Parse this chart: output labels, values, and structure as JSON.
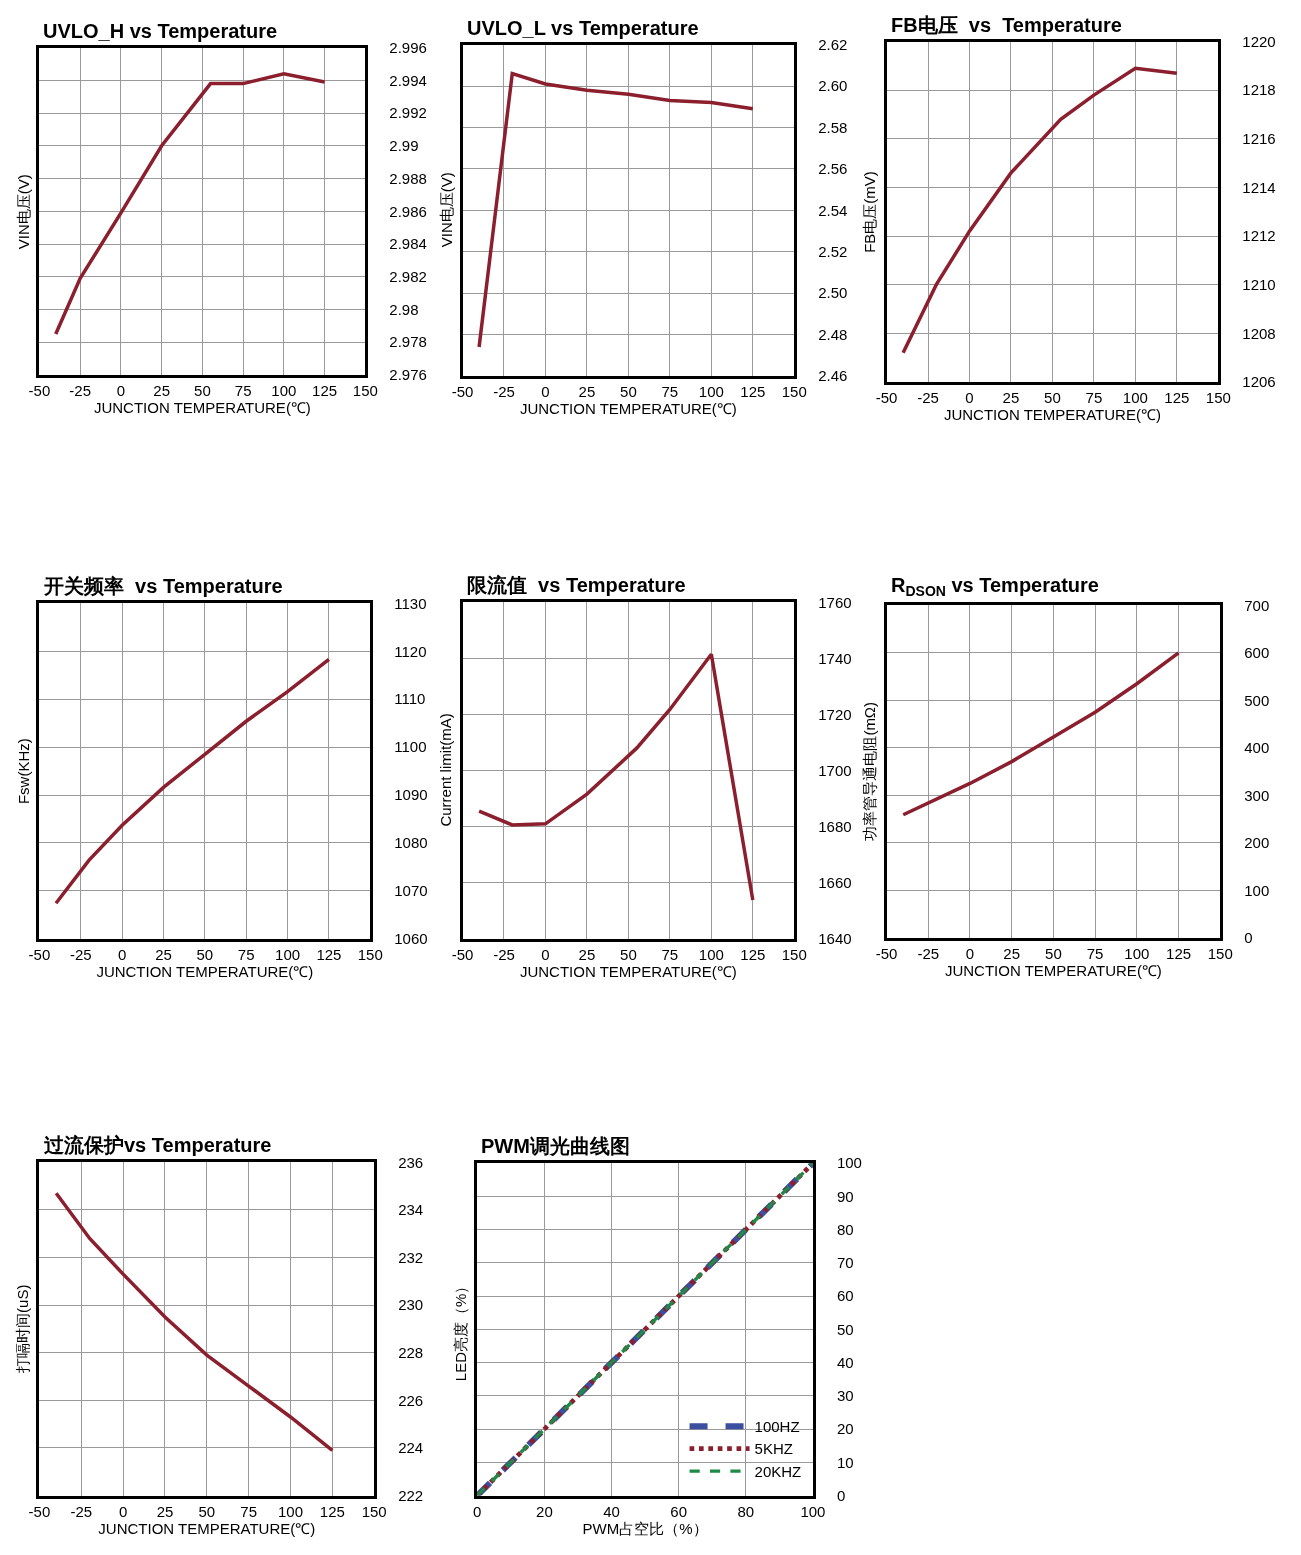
{
  "chart_data": [
    {
      "type": "line",
      "title": "UVLO_H vs Temperature",
      "xlabel": "JUNCTION TEMPERATURE(℃)",
      "ylabel": "VIN电压(V)",
      "x": [
        -40,
        -25,
        0,
        25,
        55,
        75,
        100,
        125
      ],
      "values": [
        2.9785,
        2.9819,
        2.9859,
        2.99,
        2.9938,
        2.9938,
        2.9944,
        2.9939
      ],
      "color": "#8b1f2e",
      "xlim": [
        -50,
        150
      ],
      "xticks": [
        -50,
        -25,
        0,
        25,
        50,
        75,
        100,
        125,
        150
      ],
      "ylim": [
        2.976,
        2.996
      ],
      "yticks": [
        2.976,
        2.978,
        2.98,
        2.982,
        2.984,
        2.986,
        2.988,
        2.99,
        2.992,
        2.994,
        2.996
      ],
      "grid": true
    },
    {
      "type": "line",
      "title": "UVLO_L vs Temperature",
      "xlabel": "JUNCTION TEMPERATURE(℃)",
      "ylabel": "VIN电压(V)",
      "x": [
        -40,
        -20,
        0,
        25,
        50,
        75,
        100,
        125
      ],
      "values": [
        2.474,
        2.606,
        2.601,
        2.598,
        2.596,
        2.593,
        2.592,
        2.589
      ],
      "color": "#8b1f2e",
      "xlim": [
        -50,
        150
      ],
      "xticks": [
        -50,
        -25,
        0,
        25,
        50,
        75,
        100,
        125,
        150
      ],
      "ylim": [
        2.46,
        2.62
      ],
      "yticks": [
        2.46,
        2.48,
        {
          "value": 2.5,
          "label": "2.50"
        },
        2.52,
        2.54,
        2.56,
        2.58,
        {
          "value": 2.6,
          "label": "2.60"
        },
        2.62
      ],
      "grid": true
    },
    {
      "type": "line",
      "title": "FB电压  vs  Temperature",
      "xlabel": "JUNCTION TEMPERATURE(℃)",
      "ylabel": "FB电压(mV)",
      "x": [
        -40,
        -20,
        0,
        25,
        55,
        75,
        100,
        125
      ],
      "values": [
        1207.2,
        1210.0,
        1212.2,
        1214.6,
        1216.8,
        1217.8,
        1218.9,
        1218.7
      ],
      "color": "#8b1f2e",
      "xlim": [
        -50,
        150
      ],
      "xticks": [
        -50,
        -25,
        0,
        25,
        50,
        75,
        100,
        125,
        150
      ],
      "ylim": [
        1206,
        1220
      ],
      "yticks": [
        1206,
        1208,
        1210,
        1212,
        1214,
        1216,
        1218,
        1220
      ],
      "grid": true
    },
    {
      "type": "line",
      "title": "开关频率  vs Temperature",
      "xlabel": "JUNCTION TEMPERATURE(℃)",
      "ylabel": "Fsw(KHz)",
      "x": [
        -40,
        -20,
        0,
        25,
        50,
        75,
        100,
        125
      ],
      "values": [
        1067.4,
        1076.4,
        1083.7,
        1091.6,
        1098.5,
        1105.4,
        1111.6,
        1118.3
      ],
      "color": "#8b1f2e",
      "xlim": [
        -50,
        150
      ],
      "xticks": [
        -50,
        -25,
        0,
        25,
        50,
        75,
        100,
        125,
        150
      ],
      "ylim": [
        1060,
        1130
      ],
      "yticks": [
        1060,
        1070,
        1080,
        1090,
        1100,
        1110,
        1120,
        1130
      ],
      "grid": true
    },
    {
      "type": "line",
      "title": "限流值  vs Temperature",
      "xlabel": "JUNCTION TEMPERATURE(℃)",
      "ylabel": "Current limit(mA)",
      "x": [
        -40,
        -20,
        0,
        25,
        55,
        75,
        100,
        125
      ],
      "values": [
        1685.5,
        1680.6,
        1681.0,
        1691.6,
        1708,
        1721.8,
        1741.5,
        1653.8
      ],
      "color": "#8b1f2e",
      "xlim": [
        -50,
        150
      ],
      "xticks": [
        -50,
        -25,
        0,
        25,
        50,
        75,
        100,
        125,
        150
      ],
      "ylim": [
        1640,
        1760
      ],
      "yticks": [
        1640,
        1660,
        1680,
        1700,
        1720,
        1740,
        1760
      ],
      "grid": true
    },
    {
      "type": "line",
      "title": "R$_{DSON}$ vs Temperature",
      "xlabel": "JUNCTION TEMPERATURE(℃)",
      "ylabel": "功率管导通电阻(mΩ)",
      "x": [
        -40,
        0,
        25,
        50,
        75,
        100,
        125
      ],
      "values": [
        259,
        325,
        371,
        423,
        475,
        535,
        600
      ],
      "color": "#8b1f2e",
      "xlim": [
        -50,
        150
      ],
      "xticks": [
        -50,
        -25,
        0,
        25,
        50,
        75,
        100,
        125,
        150
      ],
      "ylim": [
        0,
        700
      ],
      "yticks": [
        0,
        100,
        200,
        300,
        400,
        500,
        600,
        700
      ],
      "grid": true
    },
    {
      "type": "line",
      "title": "过流保护vs Temperature",
      "xlabel": "JUNCTION TEMPERATURE(℃)",
      "ylabel": "打嗝时间(uS)",
      "x": [
        -40,
        -20,
        0,
        25,
        50,
        75,
        100,
        125
      ],
      "values": [
        234.7,
        232.8,
        231.3,
        229.5,
        227.9,
        226.6,
        225.3,
        223.9
      ],
      "color": "#8b1f2e",
      "xlim": [
        -50,
        150
      ],
      "xticks": [
        -50,
        -25,
        0,
        25,
        50,
        75,
        100,
        125,
        150
      ],
      "ylim": [
        222,
        236
      ],
      "yticks": [
        222,
        224,
        226,
        228,
        230,
        232,
        234,
        236
      ],
      "grid": true
    },
    {
      "type": "line",
      "title": "PWM调光曲线图",
      "xlabel": "PWM占空比（%）",
      "ylabel": "LED亮度（%）",
      "x": [
        0,
        20,
        40,
        60,
        80,
        100
      ],
      "series": [
        {
          "name": "100HZ",
          "color": "#3b4fa0",
          "line_style": "dashed",
          "values": [
            0,
            20,
            40,
            60,
            80,
            100
          ]
        },
        {
          "name": "5KHZ",
          "color": "#8b1f2e",
          "line_style": "dotted",
          "values": [
            0,
            20,
            40,
            60,
            80,
            100
          ]
        },
        {
          "name": "20KHZ",
          "color": "#1f8a45",
          "line_style": "dashed",
          "values": [
            0,
            20,
            40,
            60,
            80,
            100
          ]
        }
      ],
      "xlim": [
        0,
        100
      ],
      "xticks": [
        0,
        20,
        40,
        60,
        80,
        100
      ],
      "ylim": [
        0,
        100
      ],
      "yticks": [
        0,
        10,
        20,
        30,
        40,
        50,
        60,
        70,
        80,
        90,
        100
      ],
      "grid": true,
      "legend": "bottom right"
    }
  ]
}
